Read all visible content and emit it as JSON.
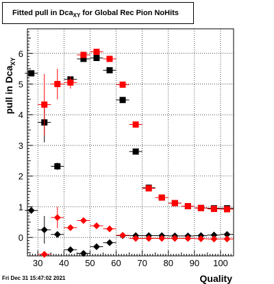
{
  "title": {
    "main": "Fitted pull in Dca",
    "sub": "XY",
    "rest": " for Global Rec Pion NoHits"
  },
  "timestamp": "Fri Dec 31 15:47:02 2021",
  "colors": {
    "series_black": "#000000",
    "series_red": "#ff0000",
    "grid": "#000000"
  },
  "chart_data": {
    "type": "scatter",
    "xlabel": "Quality",
    "ylabel": {
      "main": "pull in Dca",
      "sub": "XY"
    },
    "xlim": [
      26,
      105
    ],
    "ylim": [
      -0.6,
      6.8
    ],
    "grid": true,
    "x_ticks": [
      30,
      40,
      50,
      60,
      70,
      80,
      90,
      100
    ],
    "y_ticks": [
      0,
      1,
      2,
      3,
      4,
      5,
      6
    ],
    "series": [
      {
        "marker": "square",
        "color": "#000000",
        "points": [
          {
            "x": 27.5,
            "y": 5.35
          },
          {
            "x": 32.5,
            "y": 3.75,
            "err": 0.65
          },
          {
            "x": 37.5,
            "y": 2.32,
            "err": 0.12
          },
          {
            "x": 42.5,
            "y": 5.15
          },
          {
            "x": 47.5,
            "y": 5.82
          },
          {
            "x": 52.5,
            "y": 5.85
          },
          {
            "x": 57.5,
            "y": 5.45
          },
          {
            "x": 62.5,
            "y": 4.48
          },
          {
            "x": 67.5,
            "y": 2.8
          },
          {
            "x": 72.5,
            "y": 1.62
          },
          {
            "x": 77.5,
            "y": 1.3
          },
          {
            "x": 82.5,
            "y": 1.12
          },
          {
            "x": 87.5,
            "y": 1.02
          },
          {
            "x": 92.5,
            "y": 0.96
          },
          {
            "x": 97.5,
            "y": 0.95
          },
          {
            "x": 102.5,
            "y": 0.95
          }
        ]
      },
      {
        "marker": "square",
        "color": "#ff0000",
        "points": [
          {
            "x": 32.5,
            "y": 4.33,
            "err": 1.0
          },
          {
            "x": 37.5,
            "y": 5.0,
            "err": 0.5
          },
          {
            "x": 42.5,
            "y": 5.05,
            "err": 0.2
          },
          {
            "x": 47.5,
            "y": 5.95
          },
          {
            "x": 52.5,
            "y": 6.05
          },
          {
            "x": 57.5,
            "y": 5.82
          },
          {
            "x": 62.5,
            "y": 4.98
          },
          {
            "x": 67.5,
            "y": 3.68
          },
          {
            "x": 72.5,
            "y": 1.6
          },
          {
            "x": 77.5,
            "y": 1.3
          },
          {
            "x": 82.5,
            "y": 1.12
          },
          {
            "x": 87.5,
            "y": 1.02
          },
          {
            "x": 92.5,
            "y": 0.96
          },
          {
            "x": 97.5,
            "y": 0.93
          },
          {
            "x": 102.5,
            "y": 0.92
          }
        ]
      },
      {
        "marker": "diamond",
        "color": "#000000",
        "points": [
          {
            "x": 27.5,
            "y": 0.88
          },
          {
            "x": 32.5,
            "y": 0.25,
            "err": 0.45
          },
          {
            "x": 37.5,
            "y": 0.1
          },
          {
            "x": 42.5,
            "y": -0.4,
            "err": 0.08
          },
          {
            "x": 47.5,
            "y": -0.52
          },
          {
            "x": 52.5,
            "y": -0.3
          },
          {
            "x": 57.5,
            "y": -0.17
          },
          {
            "x": 62.5,
            "y": 0.06
          },
          {
            "x": 67.5,
            "y": 0.06
          },
          {
            "x": 72.5,
            "y": 0.06
          },
          {
            "x": 77.5,
            "y": 0.06
          },
          {
            "x": 82.5,
            "y": 0.05
          },
          {
            "x": 87.5,
            "y": 0.05
          },
          {
            "x": 92.5,
            "y": 0.06
          },
          {
            "x": 97.5,
            "y": 0.08
          },
          {
            "x": 102.5,
            "y": 0.1
          }
        ]
      },
      {
        "marker": "diamond",
        "color": "#ff0000",
        "points": [
          {
            "x": 32.5,
            "y": -0.55,
            "err": 0.1
          },
          {
            "x": 37.5,
            "y": 0.65,
            "err": 0.35
          },
          {
            "x": 42.5,
            "y": 0.32
          },
          {
            "x": 47.5,
            "y": 0.55
          },
          {
            "x": 52.5,
            "y": 0.38
          },
          {
            "x": 57.5,
            "y": 0.28
          },
          {
            "x": 62.5,
            "y": 0.07
          },
          {
            "x": 67.5,
            "y": -0.03
          },
          {
            "x": 72.5,
            "y": -0.03
          },
          {
            "x": 77.5,
            "y": -0.03
          },
          {
            "x": 82.5,
            "y": -0.03
          },
          {
            "x": 87.5,
            "y": -0.03
          },
          {
            "x": 92.5,
            "y": -0.04
          },
          {
            "x": 97.5,
            "y": -0.05
          },
          {
            "x": 102.5,
            "y": -0.05
          }
        ]
      }
    ]
  }
}
